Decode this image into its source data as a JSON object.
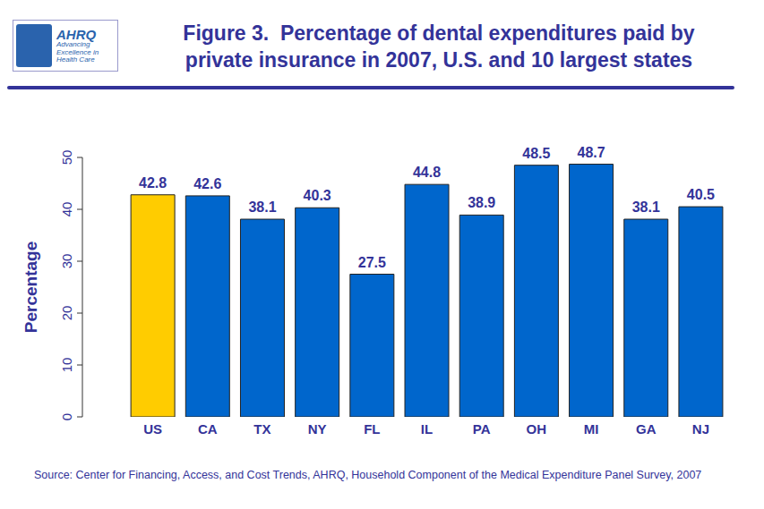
{
  "chart_data": {
    "type": "bar",
    "title": "Figure 3.  Percentage of dental expenditures paid by\nprivate insurance in 2007, U.S. and 10 largest states",
    "logo": [
      "AHRQ",
      "Advancing",
      "Excellence in",
      "Health Care"
    ],
    "source": "Source: Center for Financing, Access, and Cost Trends, AHRQ, Household Component of the Medical Expenditure Panel Survey, 2007",
    "y_label": "Percentage",
    "categories": [
      "US",
      "CA",
      "TX",
      "NY",
      "FL",
      "IL",
      "PA",
      "OH",
      "MI",
      "GA",
      "NJ"
    ],
    "values": [
      42.8,
      42.6,
      38.1,
      40.3,
      27.5,
      44.8,
      38.9,
      48.5,
      48.7,
      38.1,
      40.5
    ],
    "colors": [
      "#FFCC00",
      "#0066CC",
      "#0066CC",
      "#0066CC",
      "#0066CC",
      "#0066CC",
      "#0066CC",
      "#0066CC",
      "#0066CC",
      "#0066CC",
      "#0066CC"
    ],
    "ylim": [
      0,
      50
    ],
    "yticks": [
      0,
      10,
      20,
      30,
      40,
      50
    ],
    "grid": false,
    "data_labels": true
  }
}
